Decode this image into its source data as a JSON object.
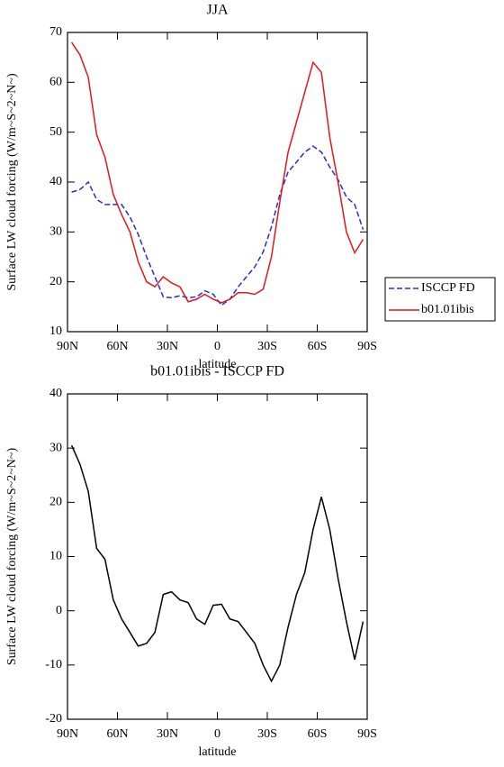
{
  "chart_data": [
    {
      "type": "line",
      "title": "JJA",
      "xlabel": "latitude",
      "ylabel": "Surface LW cloud forcing (W/m~S~2~N~)",
      "x": [
        87.5,
        82.5,
        77.5,
        72.5,
        67.5,
        62.5,
        57.5,
        52.5,
        47.5,
        42.5,
        37.5,
        32.5,
        27.5,
        22.5,
        17.5,
        12.5,
        7.5,
        2.5,
        -2.5,
        -7.5,
        -12.5,
        -17.5,
        -22.5,
        -27.5,
        -32.5,
        -37.5,
        -42.5,
        -47.5,
        -52.5,
        -57.5,
        -62.5,
        -67.5,
        -72.5,
        -77.5,
        -82.5,
        -87.5
      ],
      "series": [
        {
          "name": "ISCCP FD",
          "color": "#1f2fd6",
          "dash": true,
          "values": [
            38,
            38.5,
            40,
            36.5,
            35.5,
            35.5,
            35.5,
            33,
            29.5,
            25,
            21,
            17,
            16.8,
            17.2,
            16.8,
            17,
            18.2,
            17.5,
            15.3,
            16.5,
            19,
            21,
            23,
            26,
            31,
            37.5,
            42,
            44,
            46,
            47.2,
            46,
            43,
            40.5,
            37,
            35.5,
            30.5
          ]
        },
        {
          "name": "b01.01ibis",
          "color": "#e8141c",
          "dash": false,
          "values": [
            68,
            65.5,
            61,
            49.5,
            45,
            37.5,
            33.5,
            30,
            24,
            20,
            19,
            21,
            19.8,
            19,
            16,
            16.5,
            17.5,
            16.5,
            15.8,
            16.5,
            17.8,
            17.8,
            17.5,
            18.5,
            25,
            36,
            46,
            52,
            58,
            64,
            62,
            49,
            40,
            30,
            25.8,
            28.5
          ]
        }
      ],
      "xlim": [
        90,
        -90
      ],
      "xticks": [
        {
          "value": 90,
          "label": "90N"
        },
        {
          "value": 60,
          "label": "60N"
        },
        {
          "value": 30,
          "label": "30N"
        },
        0,
        {
          "value": -30,
          "label": "30S"
        },
        {
          "value": -60,
          "label": "60S"
        },
        {
          "value": -90,
          "label": "90S"
        }
      ],
      "ylim": [
        10,
        70
      ],
      "yticks": [
        10,
        20,
        30,
        40,
        50,
        60,
        70
      ],
      "legend": "right"
    },
    {
      "type": "line",
      "title": "b01.01ibis - ISCCP FD",
      "xlabel": "latitude",
      "ylabel": "Surface LW cloud forcing (W/m~S~2~N~)",
      "x": [
        87.5,
        82.5,
        77.5,
        72.5,
        67.5,
        62.5,
        57.5,
        52.5,
        47.5,
        42.5,
        37.5,
        32.5,
        27.5,
        22.5,
        17.5,
        12.5,
        7.5,
        2.5,
        -2.5,
        -7.5,
        -12.5,
        -17.5,
        -22.5,
        -27.5,
        -32.5,
        -37.5,
        -42.5,
        -47.5,
        -52.5,
        -57.5,
        -62.5,
        -67.5,
        -72.5,
        -77.5,
        -82.5,
        -87.5
      ],
      "series": [
        {
          "color": "#000000",
          "dash": false,
          "values": [
            30.5,
            27,
            22,
            11.5,
            9.5,
            2,
            -1.5,
            -4,
            -6.5,
            -6,
            -4,
            3,
            3.5,
            2,
            1.5,
            -1.5,
            -2.5,
            1,
            1.2,
            -1.5,
            -2,
            -4,
            -6,
            -10,
            -13,
            -10,
            -3,
            3,
            7,
            15,
            21,
            15,
            6,
            -2,
            -9,
            -2
          ]
        }
      ],
      "xlim": [
        90,
        -90
      ],
      "xticks": [
        {
          "value": 90,
          "label": "90N"
        },
        {
          "value": 60,
          "label": "60N"
        },
        {
          "value": 30,
          "label": "30N"
        },
        0,
        {
          "value": -30,
          "label": "30S"
        },
        {
          "value": -60,
          "label": "60S"
        },
        {
          "value": -90,
          "label": "90S"
        }
      ],
      "ylim": [
        -20,
        40
      ],
      "yticks": [
        -20,
        -10,
        0,
        10,
        20,
        30,
        40
      ]
    }
  ]
}
